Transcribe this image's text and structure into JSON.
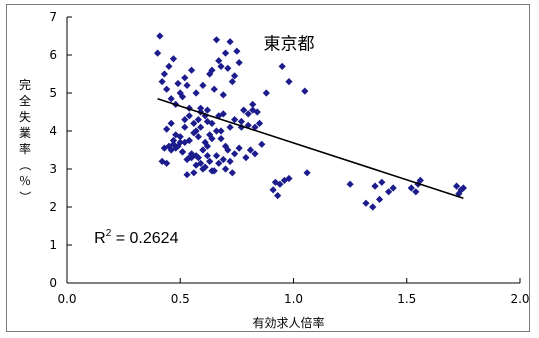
{
  "chart_data": {
    "type": "scatter",
    "title": "東京都",
    "xlabel": "有効求人倍率",
    "ylabel": "完全失業率（％）",
    "xlim": [
      0.0,
      2.0
    ],
    "ylim": [
      0,
      7
    ],
    "xticks": [
      "0.0",
      "0.5",
      "1.0",
      "1.5",
      "2.0"
    ],
    "yticks": [
      "0",
      "1",
      "2",
      "3",
      "4",
      "5",
      "6",
      "7"
    ],
    "annotation": {
      "r2_label": "R",
      "r2_exp": "2",
      "r2_value": " = 0.2624"
    },
    "trendline": {
      "x": [
        0.4,
        1.75
      ],
      "y": [
        4.85,
        2.23
      ]
    },
    "marker_color": "#1c1c8c",
    "series": [
      {
        "x": [
          0.41,
          0.4,
          0.43,
          0.42,
          0.45,
          0.47,
          0.44,
          0.49,
          0.52,
          0.5,
          0.55,
          0.53,
          0.46,
          0.48,
          0.51,
          0.54,
          0.57,
          0.6,
          0.59,
          0.62,
          0.58,
          0.65,
          0.63,
          0.67,
          0.7,
          0.72,
          0.68,
          0.74,
          0.69,
          0.71,
          0.66,
          0.75,
          0.73,
          0.76,
          0.64,
          0.61,
          0.56,
          0.78,
          0.8,
          0.82,
          0.84,
          0.77,
          0.88,
          0.85,
          0.46,
          0.48,
          0.5,
          0.52,
          0.44,
          0.43,
          0.47,
          0.54,
          0.56,
          0.58,
          0.6,
          0.62,
          0.64,
          0.59,
          0.55,
          0.51,
          0.53,
          0.57,
          0.61,
          0.63,
          0.66,
          0.68,
          0.7,
          0.72,
          0.74,
          0.76,
          0.79,
          0.81,
          0.83,
          0.86,
          0.42,
          0.44,
          0.46,
          0.49,
          0.52,
          0.55,
          0.58,
          0.61,
          0.64,
          0.67,
          0.7,
          0.73,
          0.45,
          0.48,
          0.51,
          0.54,
          0.57,
          0.6,
          0.63,
          0.66,
          0.69,
          0.5,
          0.53,
          0.56,
          0.59,
          0.62,
          0.65,
          0.68,
          0.71,
          0.47,
          0.52,
          0.57,
          0.62,
          0.67,
          0.72,
          0.77,
          0.82,
          0.54,
          0.59,
          0.64,
          0.69,
          0.74,
          0.8,
          0.83,
          0.92,
          0.94,
          0.96,
          0.93,
          0.98,
          0.91,
          1.06,
          1.05,
          0.98,
          0.95,
          1.25,
          1.32,
          1.36,
          1.39,
          1.42,
          1.38,
          1.35,
          1.44,
          1.52,
          1.55,
          1.56,
          1.54,
          1.73,
          1.74,
          1.75,
          1.72
        ],
        "y": [
          6.5,
          6.05,
          5.5,
          5.3,
          5.7,
          5.9,
          5.1,
          5.25,
          5.4,
          5.0,
          5.6,
          5.2,
          4.85,
          4.7,
          4.9,
          4.6,
          5.0,
          5.2,
          4.5,
          4.55,
          4.3,
          5.1,
          5.5,
          5.85,
          6.05,
          6.35,
          5.7,
          5.45,
          4.95,
          5.65,
          6.4,
          6.1,
          5.3,
          5.8,
          5.6,
          4.4,
          4.2,
          4.55,
          4.45,
          4.7,
          4.5,
          4.1,
          5.0,
          4.2,
          4.2,
          3.9,
          3.7,
          4.1,
          4.05,
          3.55,
          3.65,
          3.75,
          3.95,
          3.85,
          3.5,
          3.6,
          3.8,
          4.1,
          3.3,
          3.45,
          3.25,
          3.35,
          3.7,
          3.9,
          4.0,
          3.8,
          3.6,
          3.2,
          3.4,
          3.55,
          3.3,
          3.5,
          3.4,
          3.65,
          3.2,
          3.15,
          3.5,
          3.6,
          3.7,
          3.4,
          3.3,
          3.05,
          2.95,
          3.15,
          3.0,
          2.9,
          3.6,
          3.55,
          3.45,
          3.3,
          3.1,
          3.0,
          3.2,
          3.35,
          3.25,
          3.85,
          2.85,
          2.9,
          3.15,
          3.35,
          2.95,
          4.0,
          3.5,
          3.75,
          4.3,
          4.0,
          4.25,
          4.4,
          4.1,
          4.25,
          4.55,
          4.4,
          4.6,
          4.2,
          4.45,
          4.3,
          4.15,
          4.1,
          2.65,
          2.6,
          2.7,
          2.3,
          2.75,
          2.45,
          2.9,
          5.05,
          5.3,
          5.7,
          2.6,
          2.1,
          2.55,
          2.65,
          2.4,
          2.2,
          2.0,
          2.5,
          2.5,
          2.6,
          2.7,
          2.4,
          2.35,
          2.45,
          2.5,
          2.55
        ]
      }
    ]
  }
}
